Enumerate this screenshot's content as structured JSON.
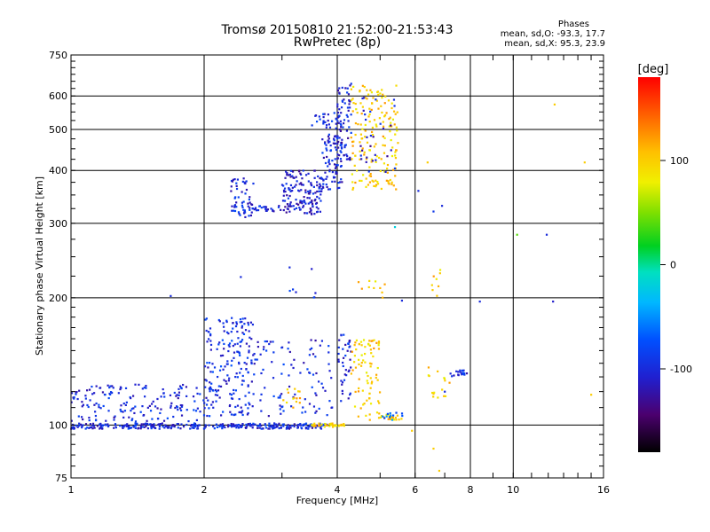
{
  "header": {
    "title_line1": "Tromsø 20150810 21:52:00-21:53:43",
    "title_line2": "RwPretec (8p)",
    "stats_heading": "Phases",
    "stats_o": "mean, sd,O: -93.3, 17.7",
    "stats_x": "mean, sd,X:  95.3, 23.9"
  },
  "colorbar": {
    "unit_label": "[deg]",
    "ticks": [
      "100",
      "0",
      "-100"
    ],
    "tick_values": [
      100,
      0,
      -100
    ],
    "range": [
      -180,
      180
    ]
  },
  "chart_data": {
    "type": "scatter",
    "xlabel": "Frequency [MHz]",
    "ylabel": "Stationary phase Virtual Height [km]",
    "x_scale": "log2",
    "y_scale": "log",
    "xlim": [
      1,
      16
    ],
    "ylim": [
      75,
      750
    ],
    "x_ticks": [
      1,
      2,
      4,
      6,
      8,
      10,
      16
    ],
    "x_tick_labels": [
      "1",
      "2",
      "4",
      "6",
      "8",
      "10",
      "16"
    ],
    "y_ticks": [
      75,
      100,
      200,
      300,
      400,
      500,
      600,
      750
    ],
    "y_tick_labels": [
      "75",
      "100",
      "200",
      "300",
      "400",
      "500",
      "600",
      "750"
    ],
    "grid": true,
    "color_encoding": "phase [deg]",
    "clusters": [
      {
        "f": [
          1.0,
          3.8
        ],
        "h": [
          98,
          101
        ],
        "phase": -100,
        "n": 320
      },
      {
        "f": [
          3.5,
          4.2
        ],
        "h": [
          99,
          101
        ],
        "phase": 100,
        "n": 35
      },
      {
        "f": [
          1.0,
          2.0
        ],
        "h": [
          102,
          125
        ],
        "phase": -100,
        "n": 160
      },
      {
        "f": [
          2.0,
          2.6
        ],
        "h": [
          105,
          180
        ],
        "phase": -95,
        "n": 200
      },
      {
        "f": [
          2.6,
          3.9
        ],
        "h": [
          105,
          160
        ],
        "phase": -100,
        "n": 90
      },
      {
        "f": [
          3.0,
          3.3
        ],
        "h": [
          110,
          122
        ],
        "phase": 100,
        "n": 14
      },
      {
        "f": [
          4.0,
          4.3
        ],
        "h": [
          110,
          165
        ],
        "phase": -100,
        "n": 40
      },
      {
        "f": [
          4.3,
          5.0
        ],
        "h": [
          125,
          160
        ],
        "phase": 100,
        "n": 55
      },
      {
        "f": [
          4.3,
          5.0
        ],
        "h": [
          102,
          123
        ],
        "phase": 100,
        "n": 25
      },
      {
        "f": [
          5.0,
          5.6
        ],
        "h": [
          103,
          106
        ],
        "phase": 100,
        "n": 20
      },
      {
        "f": [
          5.0,
          5.7
        ],
        "h": [
          102,
          107
        ],
        "phase": -70,
        "n": 12
      },
      {
        "f": [
          6.3,
          7.2
        ],
        "h": [
          115,
          140
        ],
        "phase": 100,
        "n": 16
      },
      {
        "f": [
          7.2,
          7.9
        ],
        "h": [
          130,
          135
        ],
        "phase": -100,
        "n": 18
      },
      {
        "f": [
          2.3,
          2.6
        ],
        "h": [
          310,
          385
        ],
        "phase": -100,
        "n": 60
      },
      {
        "f": [
          2.6,
          3.0
        ],
        "h": [
          318,
          330
        ],
        "phase": -100,
        "n": 22
      },
      {
        "f": [
          3.0,
          3.7
        ],
        "h": [
          315,
          400
        ],
        "phase": -110,
        "n": 150
      },
      {
        "f": [
          3.7,
          4.1
        ],
        "h": [
          360,
          550
        ],
        "phase": -100,
        "n": 100
      },
      {
        "f": [
          4.0,
          4.3
        ],
        "h": [
          420,
          660
        ],
        "phase": -105,
        "n": 70
      },
      {
        "f": [
          4.3,
          5.5
        ],
        "h": [
          360,
          640
        ],
        "phase": 100,
        "n": 170
      },
      {
        "f": [
          4.5,
          5.4
        ],
        "h": [
          380,
          600
        ],
        "phase": -110,
        "n": 30
      },
      {
        "f": [
          3.5,
          3.9
        ],
        "h": [
          510,
          545
        ],
        "phase": -100,
        "n": 12
      },
      {
        "f": [
          4.4,
          5.2
        ],
        "h": [
          200,
          220
        ],
        "phase": 100,
        "n": 10
      },
      {
        "f": [
          3.1,
          3.6
        ],
        "h": [
          200,
          210
        ],
        "phase": -100,
        "n": 6
      },
      {
        "f": [
          6.5,
          6.9
        ],
        "h": [
          200,
          245
        ],
        "phase": 100,
        "n": 8
      }
    ],
    "points": [
      {
        "f": 1.68,
        "h": 202,
        "phase": -100
      },
      {
        "f": 2.42,
        "h": 224,
        "phase": -100
      },
      {
        "f": 3.12,
        "h": 236,
        "phase": -100
      },
      {
        "f": 3.5,
        "h": 234,
        "phase": -110
      },
      {
        "f": 5.6,
        "h": 197,
        "phase": -100
      },
      {
        "f": 8.4,
        "h": 196,
        "phase": -100
      },
      {
        "f": 10.2,
        "h": 282,
        "phase": 40
      },
      {
        "f": 11.9,
        "h": 282,
        "phase": -100
      },
      {
        "f": 12.3,
        "h": 196,
        "phase": -110
      },
      {
        "f": 12.4,
        "h": 573,
        "phase": 100
      },
      {
        "f": 14.5,
        "h": 418,
        "phase": 100
      },
      {
        "f": 15.0,
        "h": 118,
        "phase": 100
      },
      {
        "f": 6.1,
        "h": 358,
        "phase": -100
      },
      {
        "f": 6.4,
        "h": 418,
        "phase": 100
      },
      {
        "f": 6.6,
        "h": 320,
        "phase": -90
      },
      {
        "f": 5.4,
        "h": 294,
        "phase": -20
      },
      {
        "f": 6.6,
        "h": 88,
        "phase": 100
      },
      {
        "f": 6.8,
        "h": 78,
        "phase": 100
      },
      {
        "f": 5.9,
        "h": 97,
        "phase": 100
      },
      {
        "f": 6.9,
        "h": 330,
        "phase": -100
      },
      {
        "f": 7.0,
        "h": 120,
        "phase": -100
      }
    ]
  }
}
